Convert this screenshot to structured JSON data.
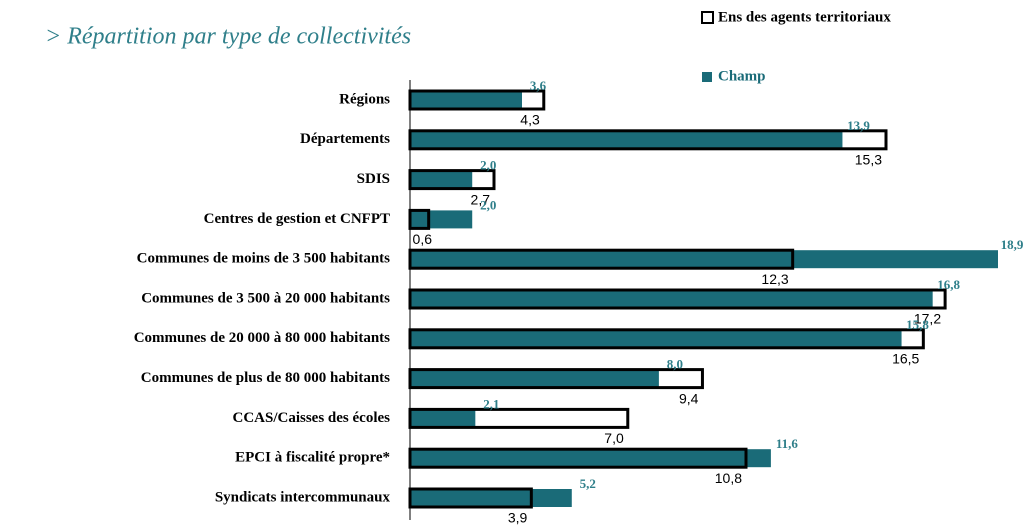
{
  "chart_data": {
    "type": "bar",
    "title": "> Répartition par type de collectivités",
    "orientation": "horizontal",
    "categories": [
      "Régions",
      "Départements",
      "SDIS",
      "Centres de gestion et CNFPT",
      "Communes de moins de 3 500 habitants",
      "Communes de 3 500 à 20 000 habitants",
      "Communes de 20 000 à 80 000 habitants",
      "Communes de plus de 80 000 habitants",
      "CCAS/Caisses des écoles",
      "EPCI à fiscalité propre*",
      "Syndicats intercommunaux"
    ],
    "series": [
      {
        "name": "Ens des agents territoriaux",
        "color": "#ffffff",
        "values": [
          4.3,
          15.3,
          2.7,
          0.6,
          12.3,
          17.2,
          16.5,
          9.4,
          7.0,
          10.8,
          3.9
        ],
        "value_labels": [
          "4,3",
          "15,3",
          "2,7",
          "0,6",
          "12,3",
          "17,2",
          "16,5",
          "9,4",
          "7,0",
          "10,8",
          "3,9"
        ]
      },
      {
        "name": "Champ",
        "color": "#1a6b78",
        "values": [
          3.6,
          13.9,
          2.0,
          2.0,
          18.9,
          16.8,
          15.8,
          8.0,
          2.1,
          11.6,
          5.2
        ],
        "value_labels": [
          "3,6",
          "13,9",
          "2,0",
          "2,0",
          "18,9",
          "16,8",
          "15,8",
          "8,0",
          "2,1",
          "11,6",
          "5,2"
        ]
      }
    ]
  }
}
